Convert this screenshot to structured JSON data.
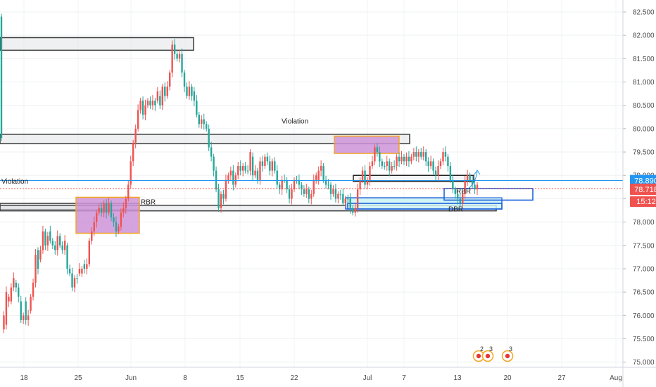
{
  "chart_data": {
    "type": "candlestick",
    "title": "",
    "xlabel": "",
    "ylabel": "",
    "ylim": [
      74.98,
      82.56
    ],
    "y_ticks": [
      "82.500",
      "82.000",
      "81.500",
      "81.000",
      "80.500",
      "80.000",
      "79.500",
      "79.000",
      "78.500",
      "78.000",
      "77.500",
      "77.000",
      "76.500",
      "76.000",
      "75.500",
      "75.000"
    ],
    "x_ticks": [
      "18",
      "25",
      "Jun",
      "8",
      "15",
      "22",
      "Jul",
      "7",
      "13",
      "20",
      "27",
      "Aug"
    ],
    "grid": true,
    "colors": {
      "up": "#26a69a",
      "down": "#ef5350",
      "demand_zone": "#ce93d8",
      "demand_border": "#f5a623",
      "blue_zone": "#1e64dc",
      "price_line": "#2196f3"
    },
    "ohlc": [
      [
        79.8,
        82.4
      ],
      [
        76.0,
        75.7
      ],
      [
        76.5,
        75.8
      ],
      [
        76.4,
        76.3
      ],
      [
        76.6,
        76.3
      ],
      [
        76.8,
        76.6
      ],
      [
        76.6,
        76.7
      ],
      [
        76.4,
        76.6
      ],
      [
        75.9,
        76.3
      ],
      [
        76.0,
        75.9
      ],
      [
        75.9,
        76.3
      ],
      [
        76.0,
        75.9
      ],
      [
        76.4,
        76.1
      ],
      [
        76.7,
        76.4
      ],
      [
        77.3,
        76.7
      ],
      [
        77.0,
        77.4
      ],
      [
        77.4,
        77.2
      ],
      [
        77.8,
        77.4
      ],
      [
        77.5,
        77.8
      ],
      [
        77.7,
        77.5
      ],
      [
        77.6,
        77.8
      ],
      [
        77.5,
        77.6
      ],
      [
        77.4,
        77.5
      ],
      [
        77.7,
        77.4
      ],
      [
        77.5,
        77.7
      ],
      [
        77.4,
        77.5
      ],
      [
        77.6,
        77.4
      ],
      [
        77.0,
        77.5
      ],
      [
        76.9,
        77.0
      ],
      [
        76.6,
        76.9
      ],
      [
        76.8,
        76.6
      ],
      [
        76.8,
        76.8
      ],
      [
        77.0,
        76.9
      ],
      [
        77.0,
        76.9
      ],
      [
        77.0,
        77.1
      ],
      [
        77.1,
        77.0
      ],
      [
        77.6,
        77.1
      ],
      [
        77.8,
        77.6
      ],
      [
        78.0,
        77.8
      ],
      [
        78.2,
        78.0
      ],
      [
        78.3,
        78.2
      ],
      [
        78.2,
        78.3
      ],
      [
        78.4,
        78.2
      ],
      [
        78.2,
        78.4
      ],
      [
        78.4,
        78.2
      ],
      [
        78.1,
        78.4
      ],
      [
        78.0,
        78.1
      ],
      [
        77.8,
        78.0
      ],
      [
        77.9,
        77.8
      ],
      [
        78.2,
        77.9
      ],
      [
        78.3,
        78.2
      ],
      [
        78.5,
        78.3
      ],
      [
        78.8,
        78.5
      ],
      [
        79.3,
        78.8
      ],
      [
        79.7,
        79.3
      ],
      [
        80.0,
        79.7
      ],
      [
        80.4,
        80.0
      ],
      [
        80.6,
        80.4
      ],
      [
        80.3,
        80.6
      ],
      [
        80.5,
        80.3
      ],
      [
        80.6,
        80.5
      ],
      [
        80.5,
        80.6
      ],
      [
        80.6,
        80.5
      ],
      [
        80.5,
        80.6
      ],
      [
        80.8,
        80.6
      ],
      [
        80.5,
        80.7
      ],
      [
        80.9,
        80.5
      ],
      [
        80.7,
        80.9
      ],
      [
        80.9,
        80.7
      ],
      [
        81.2,
        80.9
      ],
      [
        81.8,
        81.2
      ],
      [
        81.6,
        81.8
      ],
      [
        81.5,
        81.6
      ],
      [
        81.6,
        81.5
      ],
      [
        81.2,
        81.6
      ],
      [
        80.9,
        81.2
      ],
      [
        80.7,
        80.9
      ],
      [
        80.9,
        80.7
      ],
      [
        80.7,
        80.9
      ],
      [
        80.6,
        80.8
      ],
      [
        80.3,
        80.6
      ],
      [
        80.1,
        80.3
      ],
      [
        80.2,
        80.1
      ],
      [
        80.1,
        80.2
      ],
      [
        80.0,
        80.1
      ],
      [
        79.6,
        80.0
      ],
      [
        79.4,
        79.6
      ],
      [
        79.1,
        79.4
      ],
      [
        78.7,
        79.1
      ],
      [
        78.3,
        78.7
      ],
      [
        78.6,
        78.3
      ],
      [
        78.5,
        78.6
      ],
      [
        78.9,
        78.5
      ],
      [
        79.0,
        78.9
      ],
      [
        79.1,
        79.0
      ],
      [
        78.8,
        79.1
      ],
      [
        79.0,
        78.8
      ],
      [
        79.2,
        79.0
      ],
      [
        79.1,
        79.2
      ],
      [
        79.2,
        79.1
      ],
      [
        79.1,
        79.2
      ],
      [
        79.1,
        79.1
      ],
      [
        79.5,
        79.1
      ],
      [
        79.0,
        79.4
      ],
      [
        79.1,
        79.0
      ],
      [
        78.9,
        79.1
      ],
      [
        79.3,
        78.9
      ],
      [
        79.2,
        79.3
      ],
      [
        79.4,
        79.2
      ],
      [
        79.3,
        79.4
      ],
      [
        79.1,
        79.3
      ],
      [
        79.3,
        79.1
      ],
      [
        79.1,
        79.3
      ],
      [
        78.8,
        79.1
      ],
      [
        78.7,
        78.8
      ],
      [
        78.9,
        78.7
      ],
      [
        78.9,
        78.9
      ],
      [
        78.7,
        78.9
      ],
      [
        78.5,
        78.7
      ],
      [
        78.7,
        78.5
      ],
      [
        78.9,
        78.7
      ],
      [
        78.9,
        78.9
      ],
      [
        78.8,
        78.9
      ],
      [
        78.7,
        78.8
      ],
      [
        78.6,
        78.7
      ],
      [
        78.7,
        78.6
      ],
      [
        78.5,
        78.7
      ],
      [
        78.6,
        78.5
      ],
      [
        78.9,
        78.6
      ],
      [
        79.0,
        78.9
      ],
      [
        79.1,
        78.9
      ],
      [
        79.2,
        79.1
      ],
      [
        78.9,
        79.2
      ],
      [
        78.8,
        78.9
      ],
      [
        78.8,
        78.8
      ],
      [
        78.6,
        78.8
      ],
      [
        78.7,
        78.6
      ],
      [
        78.5,
        78.7
      ],
      [
        78.6,
        78.5
      ],
      [
        78.6,
        78.6
      ],
      [
        78.4,
        78.6
      ],
      [
        78.5,
        78.4
      ],
      [
        78.5,
        78.5
      ],
      [
        78.3,
        78.5
      ],
      [
        78.2,
        78.3
      ],
      [
        78.3,
        78.2
      ],
      [
        78.7,
        78.3
      ],
      [
        78.9,
        78.7
      ],
      [
        79.1,
        78.9
      ],
      [
        78.8,
        79.1
      ],
      [
        78.9,
        78.8
      ],
      [
        79.2,
        78.9
      ],
      [
        79.3,
        79.2
      ],
      [
        79.6,
        79.3
      ],
      [
        79.5,
        79.6
      ],
      [
        79.3,
        79.5
      ],
      [
        79.2,
        79.3
      ],
      [
        79.2,
        79.2
      ],
      [
        79.3,
        79.2
      ],
      [
        79.1,
        79.3
      ],
      [
        79.2,
        79.1
      ],
      [
        79.2,
        79.2
      ],
      [
        79.4,
        79.2
      ],
      [
        79.3,
        79.4
      ],
      [
        79.4,
        79.3
      ],
      [
        79.3,
        79.4
      ],
      [
        79.4,
        79.3
      ],
      [
        79.3,
        79.4
      ],
      [
        79.4,
        79.3
      ],
      [
        79.5,
        79.4
      ],
      [
        79.4,
        79.5
      ],
      [
        79.5,
        79.4
      ],
      [
        79.4,
        79.5
      ],
      [
        79.5,
        79.4
      ],
      [
        79.3,
        79.5
      ],
      [
        79.2,
        79.3
      ],
      [
        79.3,
        79.2
      ],
      [
        79.1,
        79.3
      ],
      [
        79.0,
        79.1
      ],
      [
        79.2,
        79.0
      ],
      [
        79.3,
        79.2
      ],
      [
        79.5,
        79.3
      ],
      [
        79.4,
        79.5
      ],
      [
        79.2,
        79.4
      ],
      [
        78.9,
        79.2
      ],
      [
        78.7,
        78.9
      ],
      [
        78.6,
        78.7
      ],
      [
        78.5,
        78.6
      ],
      [
        78.4,
        78.5
      ],
      [
        78.6,
        78.4
      ],
      [
        78.9,
        78.6
      ],
      [
        79.0,
        78.9
      ],
      [
        78.9,
        79.0
      ],
      [
        78.8,
        78.9
      ],
      [
        78.7,
        78.8
      ],
      [
        78.8,
        78.7
      ]
    ],
    "zones": [
      {
        "kind": "grey",
        "x1": 0,
        "x2": 275,
        "y_top": 81.95,
        "y_bot": 81.68
      },
      {
        "kind": "grey",
        "x1": 0,
        "x2": 582,
        "y_top": 79.88,
        "y_bot": 79.68
      },
      {
        "kind": "grey",
        "x1": 0,
        "x2": 198,
        "y_top": 78.4,
        "y_bot": 78.27
      },
      {
        "kind": "grey",
        "x1": 0,
        "x2": 705,
        "y_top": 78.36,
        "y_bot": 78.24
      },
      {
        "kind": "purple",
        "x1": 108,
        "x2": 198,
        "y_top": 78.53,
        "y_bot": 77.76
      },
      {
        "kind": "purple",
        "x1": 475,
        "x2": 567,
        "y_top": 79.84,
        "y_bot": 79.47
      },
      {
        "kind": "dark",
        "x1": 502,
        "x2": 673,
        "y_top": 79.0,
        "y_bot": 78.87
      },
      {
        "kind": "cyan",
        "x1": 491,
        "x2": 713,
        "y_top": 78.52,
        "y_bot": 78.28
      },
      {
        "kind": "blue",
        "x1": 631,
        "x2": 757,
        "y_top": 78.72,
        "y_bot": 78.47
      },
      {
        "kind": "blue",
        "x1": 494,
        "x2": 713,
        "y_top": 78.4,
        "y_bot": 78.28
      }
    ],
    "annotations": [
      {
        "text": "Violation",
        "x": 400,
        "y": 80.11
      },
      {
        "text": "Violation",
        "x": 2,
        "y": 78.82
      },
      {
        "text": "RBR",
        "x": 200,
        "y": 78.38
      },
      {
        "text": "RBR",
        "x": 648,
        "y": 78.61
      },
      {
        "text": "DBR",
        "x": 637,
        "y": 78.23
      }
    ],
    "current_price": "78.890",
    "current_price_value": 78.89,
    "last_price": "78.718",
    "last_price_value": 78.718,
    "countdown": "15:12",
    "event_markers": [
      "2",
      "3",
      "3"
    ]
  }
}
